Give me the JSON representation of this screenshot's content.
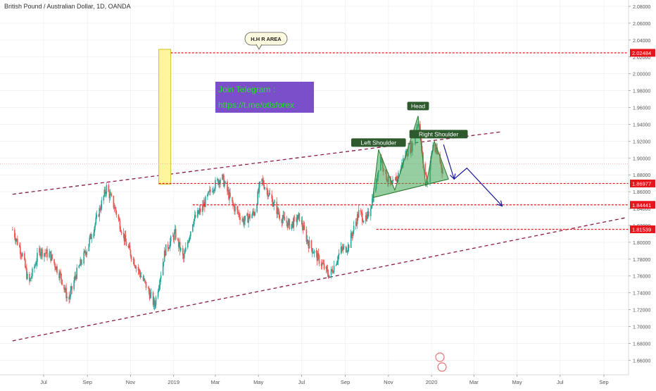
{
  "chart_data": {
    "type": "candlestick",
    "title": "British Pound / Australian Dollar, 1D, OANDA",
    "xlabel": "",
    "ylabel": "",
    "ylim": [
      1.64,
      2.09
    ],
    "x_range": [
      "2018-05-18",
      "2020-10-01"
    ],
    "grid": true,
    "legend": "none",
    "y_ticks": [
      "2.08000",
      "2.06000",
      "2.04000",
      "2.02000",
      "2.00000",
      "1.98000",
      "1.96000",
      "1.94000",
      "1.92000",
      "1.90000",
      "1.88000",
      "1.86000",
      "1.84000",
      "1.82000",
      "1.80000",
      "1.78000",
      "1.76000",
      "1.74000",
      "1.72000",
      "1.70000",
      "1.68000",
      "1.66000"
    ],
    "x_ticks": [
      {
        "label": "Jul",
        "date": "2018-07-01"
      },
      {
        "label": "Sep",
        "date": "2018-09-01"
      },
      {
        "label": "Nov",
        "date": "2018-11-01"
      },
      {
        "label": "2019",
        "date": "2019-01-01"
      },
      {
        "label": "Mar",
        "date": "2019-03-01"
      },
      {
        "label": "May",
        "date": "2019-05-01"
      },
      {
        "label": "Jul",
        "date": "2019-07-01"
      },
      {
        "label": "Sep",
        "date": "2019-09-01"
      },
      {
        "label": "Nov",
        "date": "2019-11-01"
      },
      {
        "label": "2020",
        "date": "2020-01-01"
      },
      {
        "label": "Mar",
        "date": "2020-03-01"
      },
      {
        "label": "May",
        "date": "2020-05-01"
      },
      {
        "label": "Jul",
        "date": "2020-07-01"
      },
      {
        "label": "Sep",
        "date": "2020-09-01"
      }
    ],
    "price_path": [
      {
        "date": "2018-05-18",
        "close": 1.815
      },
      {
        "date": "2018-06-01",
        "close": 1.785
      },
      {
        "date": "2018-06-10",
        "close": 1.75
      },
      {
        "date": "2018-06-25",
        "close": 1.79
      },
      {
        "date": "2018-07-10",
        "close": 1.785
      },
      {
        "date": "2018-07-25",
        "close": 1.76
      },
      {
        "date": "2018-08-05",
        "close": 1.73
      },
      {
        "date": "2018-08-15",
        "close": 1.76
      },
      {
        "date": "2018-08-30",
        "close": 1.79
      },
      {
        "date": "2018-09-15",
        "close": 1.83
      },
      {
        "date": "2018-09-28",
        "close": 1.865
      },
      {
        "date": "2018-10-10",
        "close": 1.84
      },
      {
        "date": "2018-10-25",
        "close": 1.8
      },
      {
        "date": "2018-11-10",
        "close": 1.77
      },
      {
        "date": "2018-11-25",
        "close": 1.745
      },
      {
        "date": "2018-12-05",
        "close": 1.725
      },
      {
        "date": "2018-12-20",
        "close": 1.79
      },
      {
        "date": "2019-01-03",
        "close": 1.81
      },
      {
        "date": "2019-01-15",
        "close": 1.78
      },
      {
        "date": "2019-01-28",
        "close": 1.825
      },
      {
        "date": "2019-02-10",
        "close": 1.84
      },
      {
        "date": "2019-02-25",
        "close": 1.865
      },
      {
        "date": "2019-03-10",
        "close": 1.878
      },
      {
        "date": "2019-03-25",
        "close": 1.845
      },
      {
        "date": "2019-04-10",
        "close": 1.825
      },
      {
        "date": "2019-04-25",
        "close": 1.835
      },
      {
        "date": "2019-05-05",
        "close": 1.875
      },
      {
        "date": "2019-05-20",
        "close": 1.85
      },
      {
        "date": "2019-06-01",
        "close": 1.83
      },
      {
        "date": "2019-06-15",
        "close": 1.82
      },
      {
        "date": "2019-06-28",
        "close": 1.83
      },
      {
        "date": "2019-07-10",
        "close": 1.8
      },
      {
        "date": "2019-07-25",
        "close": 1.78
      },
      {
        "date": "2019-08-10",
        "close": 1.76
      },
      {
        "date": "2019-08-25",
        "close": 1.79
      },
      {
        "date": "2019-09-05",
        "close": 1.795
      },
      {
        "date": "2019-09-20",
        "close": 1.835
      },
      {
        "date": "2019-10-01",
        "close": 1.825
      },
      {
        "date": "2019-10-15",
        "close": 1.87
      },
      {
        "date": "2019-10-20",
        "close": 1.905
      },
      {
        "date": "2019-10-28",
        "close": 1.88
      },
      {
        "date": "2019-11-05",
        "close": 1.865
      },
      {
        "date": "2019-11-15",
        "close": 1.88
      },
      {
        "date": "2019-11-25",
        "close": 1.905
      },
      {
        "date": "2019-12-05",
        "close": 1.915
      },
      {
        "date": "2019-12-13",
        "close": 1.945
      },
      {
        "date": "2019-12-20",
        "close": 1.895
      },
      {
        "date": "2019-12-26",
        "close": 1.87
      },
      {
        "date": "2020-01-03",
        "close": 1.915
      },
      {
        "date": "2020-01-12",
        "close": 1.9
      },
      {
        "date": "2020-01-18",
        "close": 1.88
      }
    ],
    "horizontal_levels": [
      {
        "value": 2.02484,
        "label": "2.02484"
      },
      {
        "value": 1.86977,
        "label": "1.86977"
      },
      {
        "value": 1.84441,
        "label": "1.84441"
      },
      {
        "value": 1.81539,
        "label": "1.81539"
      }
    ],
    "current_price_line": 1.893,
    "channel_upper": [
      {
        "date": "2018-05-18",
        "value": 1.857
      },
      {
        "date": "2020-04-08",
        "value": 1.931
      }
    ],
    "channel_lower": [
      {
        "date": "2018-05-18",
        "value": 1.683
      },
      {
        "date": "2020-10-01",
        "value": 1.829
      }
    ],
    "hhr_box": {
      "start": "2018-12-11",
      "end": "2018-12-28",
      "top": 2.029,
      "bottom": 1.869
    },
    "pattern": [
      {
        "label": "Left Shoulder",
        "date": "2019-10-18",
        "value": 1.91
      },
      {
        "label": "Head",
        "date": "2019-12-13",
        "value": 1.95
      },
      {
        "label": "Right Shoulder",
        "date": "2020-01-05",
        "value": 1.92
      }
    ],
    "neckline": [
      {
        "date": "2019-10-10",
        "value": 1.853
      },
      {
        "date": "2020-01-25",
        "value": 1.875
      }
    ],
    "projection": [
      {
        "date": "2020-01-18",
        "value": 1.916
      },
      {
        "date": "2020-02-02",
        "value": 1.875
      },
      {
        "date": "2020-02-20",
        "value": 1.888
      },
      {
        "date": "2020-04-10",
        "value": 1.843
      }
    ],
    "annotations": {
      "hhr": "H.H R AREA",
      "telegram_line1": "Join Telegram :",
      "telegram_line2": "https://t.me/otlsforex"
    },
    "colors": {
      "up": "#26a69a",
      "down": "#ef5350",
      "channel": "#8b1a4a",
      "level": "#e8141b",
      "pattern_fill": "#3fa653",
      "arrow": "#1a1a9a",
      "telegram_bg": "#7b4fc9",
      "telegram_text": "#22e522",
      "hhr_fill": "#fff59d",
      "hhr_stroke": "#d4c020"
    }
  }
}
